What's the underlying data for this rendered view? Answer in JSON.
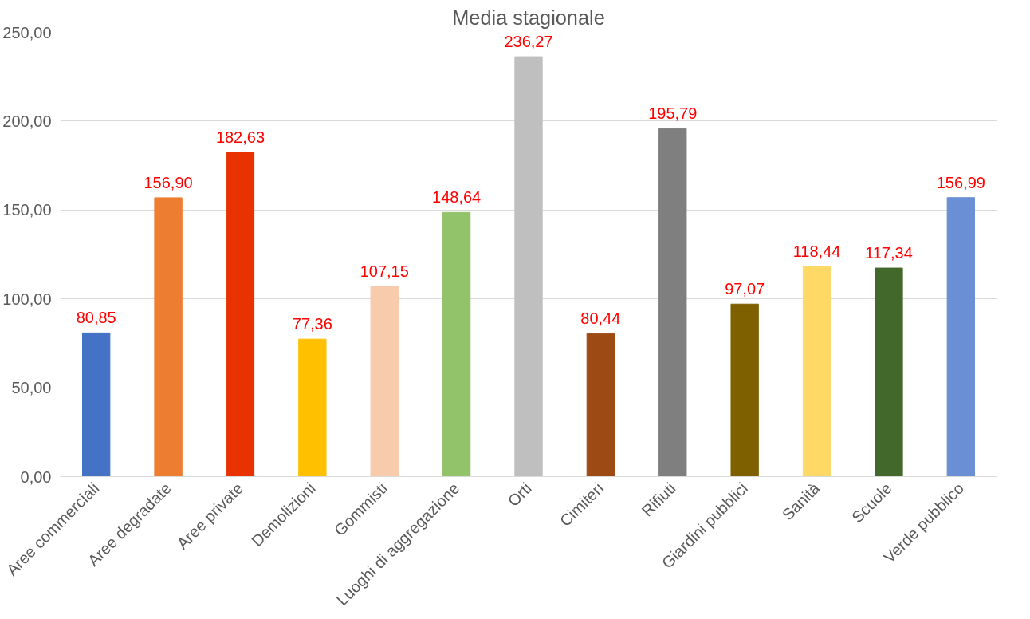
{
  "chart_data": {
    "type": "bar",
    "title": "Media stagionale",
    "categories": [
      "Aree commerciali",
      "Aree degradate",
      "Aree private",
      "Demolizioni",
      "Gommisti",
      "Luoghi di aggregazione",
      "Orti",
      "Cimiteri",
      "Rifiuti",
      "Giardini pubblici",
      "Sanità",
      "Scuole",
      "Verde pubblico"
    ],
    "values": [
      80.85,
      156.9,
      182.63,
      77.36,
      107.15,
      148.64,
      236.27,
      80.44,
      195.79,
      97.07,
      118.44,
      117.34,
      156.99
    ],
    "colors": [
      "#4472c4",
      "#ed7d31",
      "#e83200",
      "#ffc000",
      "#f8cbad",
      "#92c36a",
      "#bfbfbf",
      "#9e4a14",
      "#7f7f7f",
      "#7f6000",
      "#ffd966",
      "#43682b",
      "#6a8fd4"
    ],
    "value_labels": [
      "80,85",
      "156,90",
      "182,63",
      "77,36",
      "107,15",
      "148,64",
      "236,27",
      "80,44",
      "195,79",
      "97,07",
      "118,44",
      "117,34",
      "156,99"
    ],
    "ylim": [
      0,
      250
    ],
    "yticks": [
      {
        "value": 0,
        "label": "0,00"
      },
      {
        "value": 50,
        "label": "50,00"
      },
      {
        "value": 100,
        "label": "100,00"
      },
      {
        "value": 150,
        "label": "150,00"
      },
      {
        "value": 200,
        "label": "200,00"
      },
      {
        "value": 250,
        "label": "250,00"
      }
    ],
    "grid": "y"
  }
}
